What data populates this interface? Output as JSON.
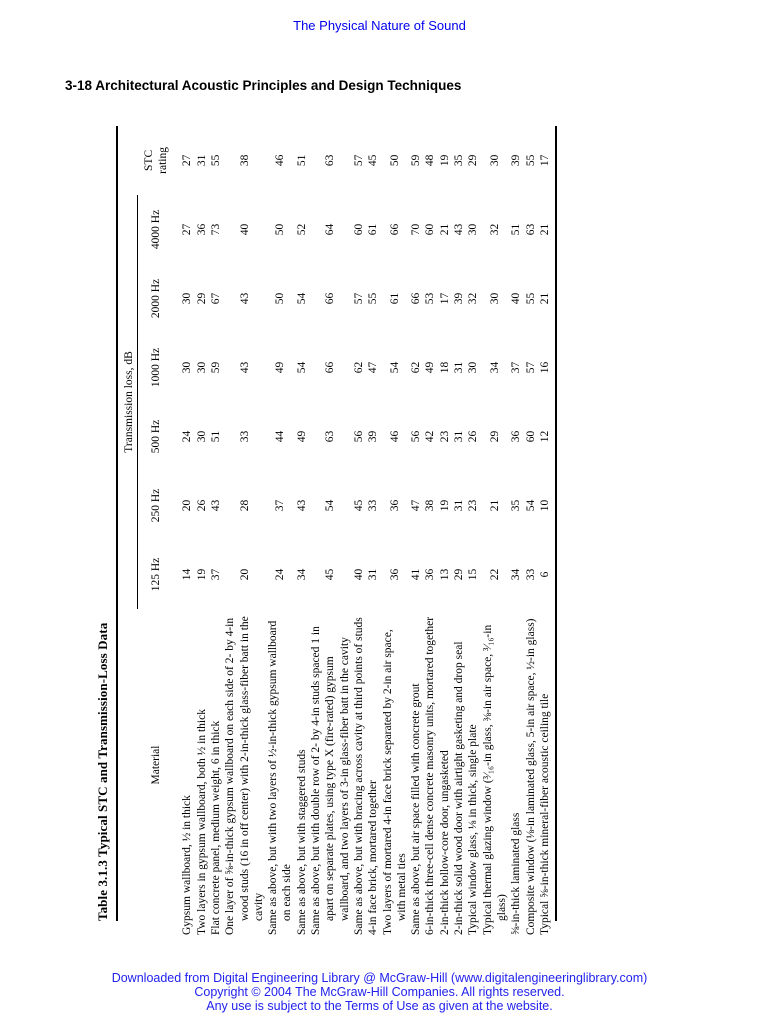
{
  "page": {
    "running_header": "The Physical Nature of Sound",
    "section_heading": "3-18 Architectural Acoustic Principles and Design Techniques",
    "footer_lines": [
      "Downloaded from Digital Engineering Library @ McGraw-Hill (www.digitalengineeringlibrary.com)",
      "Copyright © 2004 The McGraw-Hill Companies. All rights reserved.",
      "Any use is subject to the Terms of Use as given at the website."
    ],
    "colors": {
      "header_footer_blue": "#2222ee",
      "body_text": "#000000",
      "page_background": "#ffffff"
    }
  },
  "table": {
    "title": "Table 3.1.3 Typical STC and Transmission-Loss Data",
    "span_header": "Transmission loss, dB",
    "material_header": "Material",
    "freq_headers": [
      "125 Hz",
      "250 Hz",
      "500 Hz",
      "1000 Hz",
      "2000 Hz",
      "4000 Hz"
    ],
    "stc_header": [
      "STC",
      "rating"
    ],
    "rows": [
      {
        "material": "Gypsum wallboard, ½ in thick",
        "tl": [
          14,
          20,
          24,
          30,
          30,
          27
        ],
        "stc": 27
      },
      {
        "material": "Two layers in gypsum wallboard, both ½ in thick",
        "tl": [
          19,
          26,
          30,
          30,
          29,
          36
        ],
        "stc": 31
      },
      {
        "material": "Flat concrete panel, medium weight, 6 in thick",
        "tl": [
          37,
          43,
          51,
          59,
          67,
          73
        ],
        "stc": 55
      },
      {
        "material": "One layer of ⅝-in-thick gypsum wallboard on each side of 2- by 4-in wood studs (16 in off center) with 2-in-thick glass-fiber batt in the cavity",
        "tl": [
          20,
          28,
          33,
          43,
          43,
          40
        ],
        "stc": 38
      },
      {
        "material": "Same as above, but with two layers of ½-in-thick gypsum wallboard on each side",
        "tl": [
          24,
          37,
          44,
          49,
          50,
          50
        ],
        "stc": 46
      },
      {
        "material": "Same as above, but with staggered studs",
        "tl": [
          34,
          43,
          49,
          54,
          54,
          52
        ],
        "stc": 51
      },
      {
        "material": "Same as above, but with double row of 2- by 4-in studs spaced 1 in apart on separate plates, using type X (fire-rated) gypsum wallboard, and two layers of 3-in glass-fiber batt in the cavity",
        "tl": [
          45,
          54,
          63,
          66,
          66,
          64
        ],
        "stc": 63
      },
      {
        "material": "Same as above, but with bracing across cavity at third points of studs",
        "tl": [
          40,
          45,
          56,
          62,
          57,
          60
        ],
        "stc": 57
      },
      {
        "material": "4-in face brick, mortared together",
        "tl": [
          31,
          33,
          39,
          47,
          55,
          61
        ],
        "stc": 45
      },
      {
        "material": "Two layers of mortared 4-in face brick separated by 2-in air space, with metal ties",
        "tl": [
          36,
          36,
          46,
          54,
          61,
          66
        ],
        "stc": 50
      },
      {
        "material": "Same as above, but air space filled with concrete grout",
        "tl": [
          41,
          47,
          56,
          62,
          66,
          70
        ],
        "stc": 59
      },
      {
        "material": "6-in-thick three-cell dense concrete masonry units, mortared together",
        "tl": [
          36,
          38,
          42,
          49,
          53,
          60
        ],
        "stc": 48
      },
      {
        "material": "2-in-thick hollow-core door, ungasketed",
        "tl": [
          13,
          19,
          23,
          18,
          17,
          21
        ],
        "stc": 19
      },
      {
        "material": "2-in-thick solid wood door with airtight gasketing and drop seal",
        "tl": [
          29,
          31,
          31,
          31,
          39,
          43
        ],
        "stc": 35
      },
      {
        "material": "Typical window glass, ⅛ in thick, single plate",
        "tl": [
          15,
          23,
          26,
          30,
          32,
          30
        ],
        "stc": 29
      },
      {
        "material": "Typical thermal glazing window (³⁄₁₆-in glass, ⅜-in air space, ³⁄₁₆-in glass)",
        "tl": [
          22,
          21,
          29,
          34,
          30,
          32
        ],
        "stc": 30
      },
      {
        "material": "⅝-in-thick laminated glass",
        "tl": [
          34,
          35,
          36,
          37,
          40,
          51
        ],
        "stc": 39
      },
      {
        "material": "Composite window (⅛-in laminated glass, 5-in air space, ½-in glass)",
        "tl": [
          33,
          54,
          60,
          57,
          55,
          63
        ],
        "stc": 55
      },
      {
        "material": "Typical ⅝-in-thick mineral-fiber acoustic ceiling tile",
        "tl": [
          6,
          10,
          12,
          16,
          21,
          21
        ],
        "stc": 17
      }
    ]
  }
}
